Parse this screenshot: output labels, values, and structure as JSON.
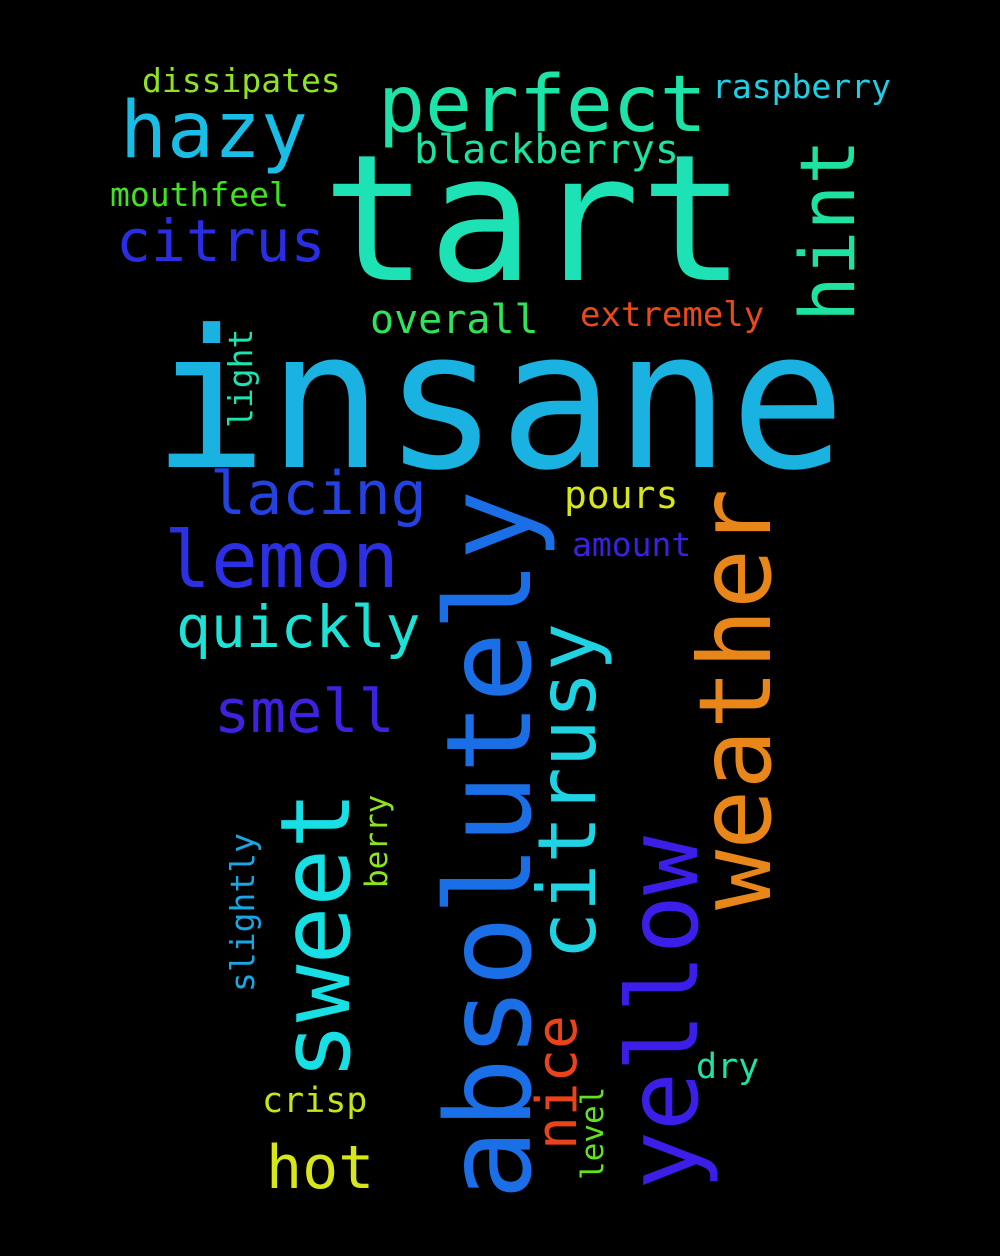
{
  "word_cloud": {
    "words": [
      {
        "text": "insane",
        "color": "#1ab2e0",
        "orientation": "horizontal"
      },
      {
        "text": "tart",
        "color": "#1de2b6",
        "orientation": "horizontal"
      },
      {
        "text": "absolutely",
        "color": "#1a6ee6",
        "orientation": "vertical"
      },
      {
        "text": "sweet",
        "color": "#18dfe3",
        "orientation": "vertical"
      },
      {
        "text": "weather",
        "color": "#e8861a",
        "orientation": "vertical"
      },
      {
        "text": "yellow",
        "color": "#3b1fe8",
        "orientation": "vertical"
      },
      {
        "text": "citrusy",
        "color": "#1fd3e3",
        "orientation": "vertical"
      },
      {
        "text": "perfect",
        "color": "#1ee3a8",
        "orientation": "horizontal"
      },
      {
        "text": "hazy",
        "color": "#19bde5",
        "orientation": "horizontal"
      },
      {
        "text": "lemon",
        "color": "#2d2fe3",
        "orientation": "horizontal"
      },
      {
        "text": "hint",
        "color": "#1de2a0",
        "orientation": "vertical"
      },
      {
        "text": "citrus",
        "color": "#2a2ee3",
        "orientation": "horizontal"
      },
      {
        "text": "lacing",
        "color": "#2442e0",
        "orientation": "horizontal"
      },
      {
        "text": "quickly",
        "color": "#1de3d6",
        "orientation": "horizontal"
      },
      {
        "text": "smell",
        "color": "#3d22e0",
        "orientation": "horizontal"
      },
      {
        "text": "hot",
        "color": "#d6e61a",
        "orientation": "horizontal"
      },
      {
        "text": "nice",
        "color": "#e8431a",
        "orientation": "vertical"
      },
      {
        "text": "blackberrys",
        "color": "#1de3a0",
        "orientation": "horizontal"
      },
      {
        "text": "overall",
        "color": "#2fe35a",
        "orientation": "horizontal"
      },
      {
        "text": "extremely",
        "color": "#e84a1a",
        "orientation": "horizontal"
      },
      {
        "text": "pours",
        "color": "#d6e61a",
        "orientation": "horizontal"
      },
      {
        "text": "raspberry",
        "color": "#1ed0e3",
        "orientation": "horizontal"
      },
      {
        "text": "dissipates",
        "color": "#8fe324",
        "orientation": "horizontal"
      },
      {
        "text": "mouthfeel",
        "color": "#3fe31f",
        "orientation": "horizontal"
      },
      {
        "text": "light",
        "color": "#1de3b0",
        "orientation": "vertical"
      },
      {
        "text": "amount",
        "color": "#3a22e0",
        "orientation": "horizontal"
      },
      {
        "text": "slightly",
        "color": "#1aa6e3",
        "orientation": "vertical"
      },
      {
        "text": "berry",
        "color": "#8ee31f",
        "orientation": "vertical"
      },
      {
        "text": "crisp",
        "color": "#c2e61a",
        "orientation": "horizontal"
      },
      {
        "text": "dry",
        "color": "#1ee3a4",
        "orientation": "horizontal"
      },
      {
        "text": "level",
        "color": "#5fe31f",
        "orientation": "vertical"
      }
    ]
  }
}
